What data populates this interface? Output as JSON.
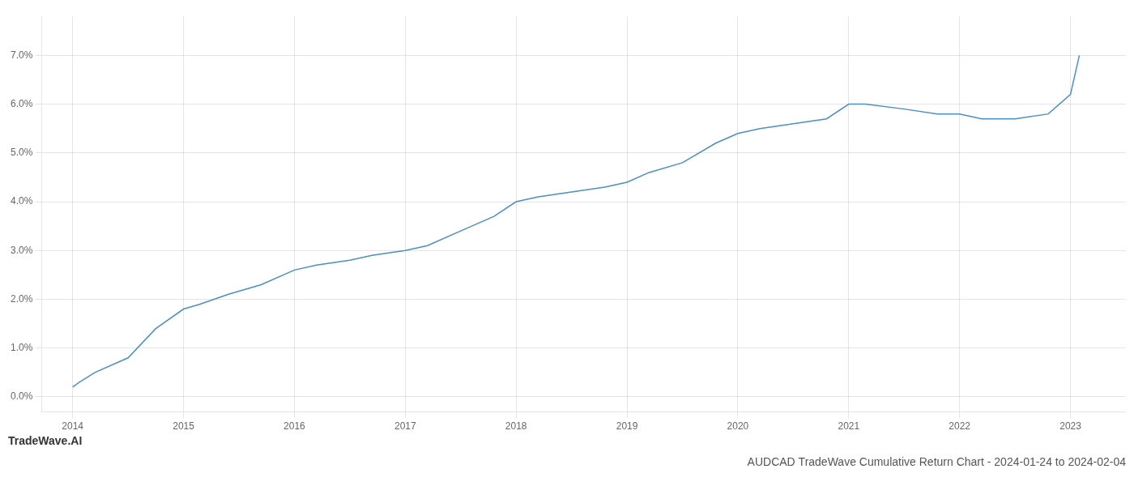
{
  "chart_data": {
    "type": "line",
    "title": "AUDCAD TradeWave Cumulative Return Chart - 2024-01-24 to 2024-02-04",
    "annotations": [
      "TradeWave.AI"
    ],
    "x": [
      2014.0,
      2014.06,
      2014.2,
      2014.5,
      2014.75,
      2015.0,
      2015.15,
      2015.4,
      2015.7,
      2016.0,
      2016.2,
      2016.5,
      2016.7,
      2017.0,
      2017.2,
      2017.5,
      2017.8,
      2018.0,
      2018.2,
      2018.5,
      2018.8,
      2019.0,
      2019.2,
      2019.5,
      2019.8,
      2020.0,
      2020.2,
      2020.5,
      2020.8,
      2021.0,
      2021.15,
      2021.5,
      2021.8,
      2022.0,
      2022.2,
      2022.5,
      2022.8,
      2023.0,
      2023.08
    ],
    "values": [
      0.002,
      0.003,
      0.005,
      0.008,
      0.014,
      0.018,
      0.019,
      0.021,
      0.023,
      0.026,
      0.027,
      0.028,
      0.029,
      0.03,
      0.031,
      0.034,
      0.037,
      0.04,
      0.041,
      0.042,
      0.043,
      0.044,
      0.046,
      0.048,
      0.052,
      0.054,
      0.055,
      0.056,
      0.057,
      0.06,
      0.06,
      0.059,
      0.058,
      0.058,
      0.057,
      0.057,
      0.058,
      0.062,
      0.07
    ],
    "color": "#4a90c4",
    "xlim": [
      2013.72,
      2023.5
    ],
    "xticks": [
      2014,
      2015,
      2016,
      2017,
      2018,
      2019,
      2020,
      2021,
      2022,
      2023
    ],
    "ylim": [
      -0.003,
      0.078
    ],
    "yticks": [
      {
        "value": 0.0,
        "label": "0.0%"
      },
      {
        "value": 0.01,
        "label": "1.0%"
      },
      {
        "value": 0.02,
        "label": "2.0%"
      },
      {
        "value": 0.03,
        "label": "3.0%"
      },
      {
        "value": 0.04,
        "label": "4.0%"
      },
      {
        "value": 0.05,
        "label": "5.0%"
      },
      {
        "value": 0.06,
        "label": "6.0%"
      },
      {
        "value": 0.07,
        "label": "7.0%"
      }
    ],
    "grid": true
  }
}
